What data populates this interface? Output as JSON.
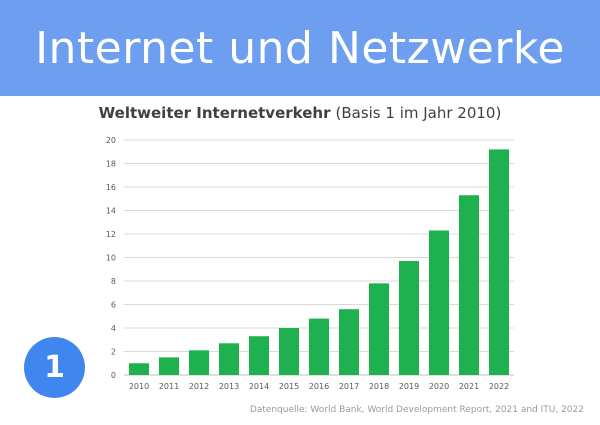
{
  "header": {
    "title": "Internet und Netzwerke"
  },
  "badge": {
    "number": "1"
  },
  "source": {
    "text": "Datenquelle: World Bank, World Development Report, 2021 and ITU, 2022"
  },
  "colors": {
    "banner": "#6d9ef0",
    "bars": "#1fb04f",
    "badge": "#3f86ee",
    "grid": "#d9d9d9"
  },
  "chart_data": {
    "type": "bar",
    "title": "Weltweiter Internetverkehr",
    "subtitle": "(Basis 1 im Jahr 2010)",
    "xlabel": "",
    "ylabel": "",
    "ylim": [
      0,
      20
    ],
    "yticks": [
      "0",
      "2",
      "4",
      "6",
      "8",
      "10",
      "12",
      "14",
      "16",
      "18",
      "20"
    ],
    "grid": true,
    "categories": [
      "2010",
      "2011",
      "2012",
      "2013",
      "2014",
      "2015",
      "2016",
      "2017",
      "2018",
      "2019",
      "2020",
      "2021",
      "2022"
    ],
    "values": [
      1.0,
      1.5,
      2.1,
      2.7,
      3.3,
      4.0,
      4.8,
      5.6,
      7.8,
      9.7,
      12.3,
      15.3,
      19.2
    ]
  }
}
